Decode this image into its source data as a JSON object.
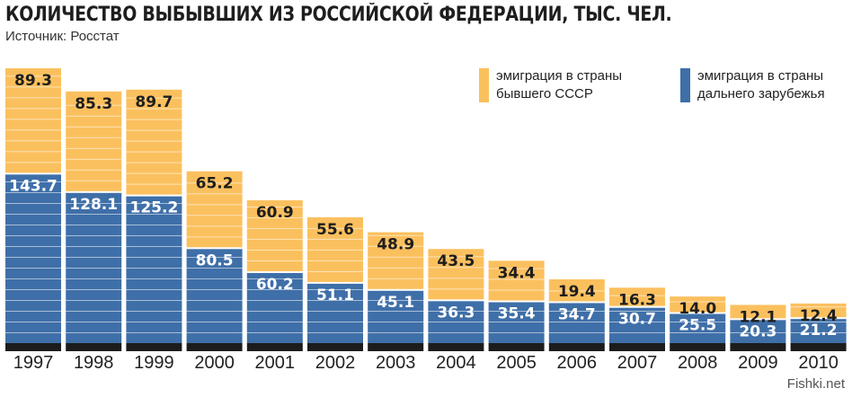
{
  "title": "КОЛИЧЕСТВО ВЫБЫВШИХ ИЗ РОССИЙСКОЙ ФЕДЕРАЦИИ, ТЫС. ЧЕЛ.",
  "source": "Источник: Росстат",
  "watermark": "Fishki.net",
  "legend": [
    {
      "line1": "эмиграция в страны",
      "line2": "бывшего СССР",
      "color": "#fbc05e"
    },
    {
      "line1": "эмиграция в страны",
      "line2": "дальнего зарубежья",
      "color": "#3f6fa8"
    }
  ],
  "colors": {
    "ussr": "#fbc05e",
    "far": "#3f6fa8",
    "base": "#1c1c1c"
  },
  "chart_data": {
    "type": "bar",
    "stacked": true,
    "categories": [
      "1997",
      "1998",
      "1999",
      "2000",
      "2001",
      "2002",
      "2003",
      "2004",
      "2005",
      "2006",
      "2007",
      "2008",
      "2009",
      "2010"
    ],
    "series": [
      {
        "name": "эмиграция в страны дальнего зарубежья",
        "values": [
          143.7,
          128.1,
          125.2,
          80.5,
          60.2,
          51.1,
          45.1,
          36.3,
          35.4,
          34.7,
          30.7,
          25.5,
          20.3,
          21.2
        ]
      },
      {
        "name": "эмиграция в страны бывшего СССР",
        "values": [
          89.3,
          85.3,
          89.7,
          65.2,
          60.9,
          55.6,
          48.9,
          43.5,
          34.4,
          19.4,
          16.3,
          14.0,
          12.1,
          12.4
        ]
      }
    ],
    "value_labels": {
      "far": [
        "143.7",
        "128.1",
        "125.2",
        "80.5",
        "60.2",
        "51.1",
        "45.1",
        "36.3",
        "35.4",
        "34.7",
        "30.7",
        "25.5",
        "20.3",
        "21.2"
      ],
      "ussr": [
        "89.3",
        "85.3",
        "89.7",
        "65.2",
        "60.9",
        "55.6",
        "48.9",
        "43.5",
        "34.4",
        "19.4",
        "16.3",
        "14.0",
        "12.1",
        "12.4"
      ]
    },
    "xlabel": "",
    "ylabel": "",
    "grid": false,
    "legend_position": "top-right"
  }
}
